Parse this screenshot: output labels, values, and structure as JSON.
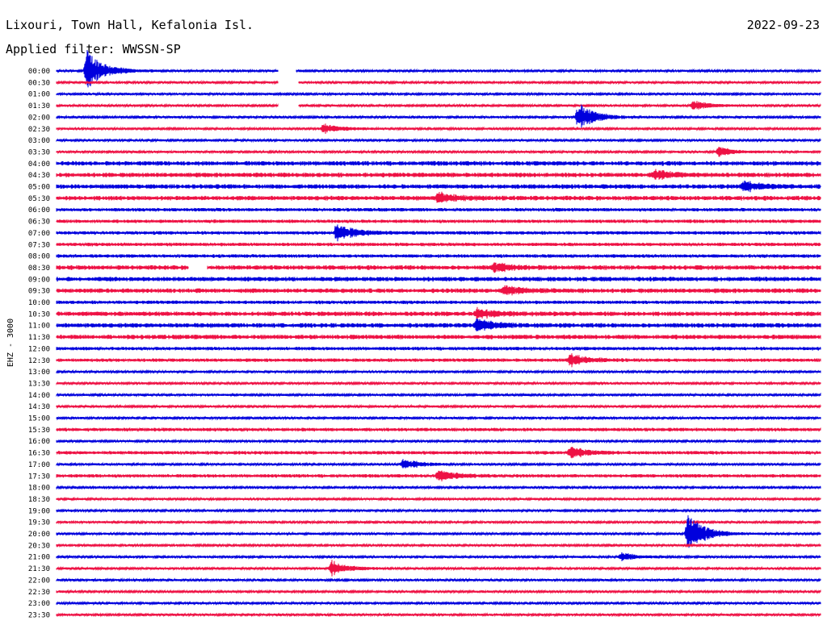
{
  "header": {
    "station": "Lixouri, Town Hall, Kefalonia Isl.",
    "date": "2022-09-23",
    "filter": "Applied filter: WWSSN-SP"
  },
  "chart_data": {
    "type": "line",
    "ylabel": "EHZ - 3000",
    "row_labels": [
      "00:00",
      "00:30",
      "01:00",
      "01:30",
      "02:00",
      "02:30",
      "03:00",
      "03:30",
      "04:00",
      "04:30",
      "05:00",
      "05:30",
      "06:00",
      "06:30",
      "07:00",
      "07:30",
      "08:00",
      "08:30",
      "09:00",
      "09:30",
      "10:00",
      "10:30",
      "11:00",
      "11:30",
      "12:00",
      "12:30",
      "13:00",
      "13:30",
      "14:00",
      "14:30",
      "15:00",
      "15:30",
      "16:00",
      "16:30",
      "17:00",
      "17:30",
      "18:00",
      "18:30",
      "19:00",
      "19:30",
      "20:00",
      "20:30",
      "21:00",
      "21:30",
      "22:00",
      "22:30",
      "23:00",
      "23:30"
    ],
    "series_colors": [
      "#0000dd",
      "#ee1144"
    ],
    "noise_level": [
      1,
      1,
      1,
      1,
      1,
      1,
      1,
      1,
      2,
      2,
      2,
      2,
      1.5,
      1.5,
      1.5,
      1.5,
      1.5,
      2,
      2,
      2,
      1.5,
      2,
      2,
      2,
      1.5,
      1.5,
      1,
      1,
      1,
      1,
      1,
      1.5,
      1,
      1.5,
      1,
      1.5,
      1,
      1,
      1,
      1,
      1,
      1,
      1,
      1,
      1,
      1,
      1,
      1
    ],
    "events": [
      {
        "row": 0,
        "minute": 1.2,
        "amplitude": 26
      },
      {
        "row": 3,
        "minute": 25,
        "amplitude": 6
      },
      {
        "row": 4,
        "minute": 20.5,
        "amplitude": 18
      },
      {
        "row": 5,
        "minute": 10.5,
        "amplitude": 6
      },
      {
        "row": 7,
        "minute": 26,
        "amplitude": 6
      },
      {
        "row": 9,
        "minute": 23.5,
        "amplitude": 6
      },
      {
        "row": 10,
        "minute": 27,
        "amplitude": 6
      },
      {
        "row": 11,
        "minute": 15,
        "amplitude": 7
      },
      {
        "row": 14,
        "minute": 11,
        "amplitude": 12
      },
      {
        "row": 17,
        "minute": 17.2,
        "amplitude": 6
      },
      {
        "row": 19,
        "minute": 17.6,
        "amplitude": 7
      },
      {
        "row": 21,
        "minute": 16.5,
        "amplitude": 7
      },
      {
        "row": 22,
        "minute": 16.5,
        "amplitude": 8
      },
      {
        "row": 25,
        "minute": 20.2,
        "amplitude": 8
      },
      {
        "row": 33,
        "minute": 20.2,
        "amplitude": 7
      },
      {
        "row": 34,
        "minute": 13.6,
        "amplitude": 7
      },
      {
        "row": 35,
        "minute": 15,
        "amplitude": 7
      },
      {
        "row": 40,
        "minute": 24.8,
        "amplitude": 24
      },
      {
        "row": 42,
        "minute": 22.2,
        "amplitude": 5
      },
      {
        "row": 43,
        "minute": 10.8,
        "amplitude": 10
      }
    ],
    "gaps": [
      {
        "row": 0,
        "from": 8.7,
        "to": 9.4
      },
      {
        "row": 1,
        "from": 8.7,
        "to": 9.5
      },
      {
        "row": 3,
        "from": 8.7,
        "to": 9.5
      },
      {
        "row": 17,
        "from": 5.2,
        "to": 5.9
      }
    ]
  }
}
